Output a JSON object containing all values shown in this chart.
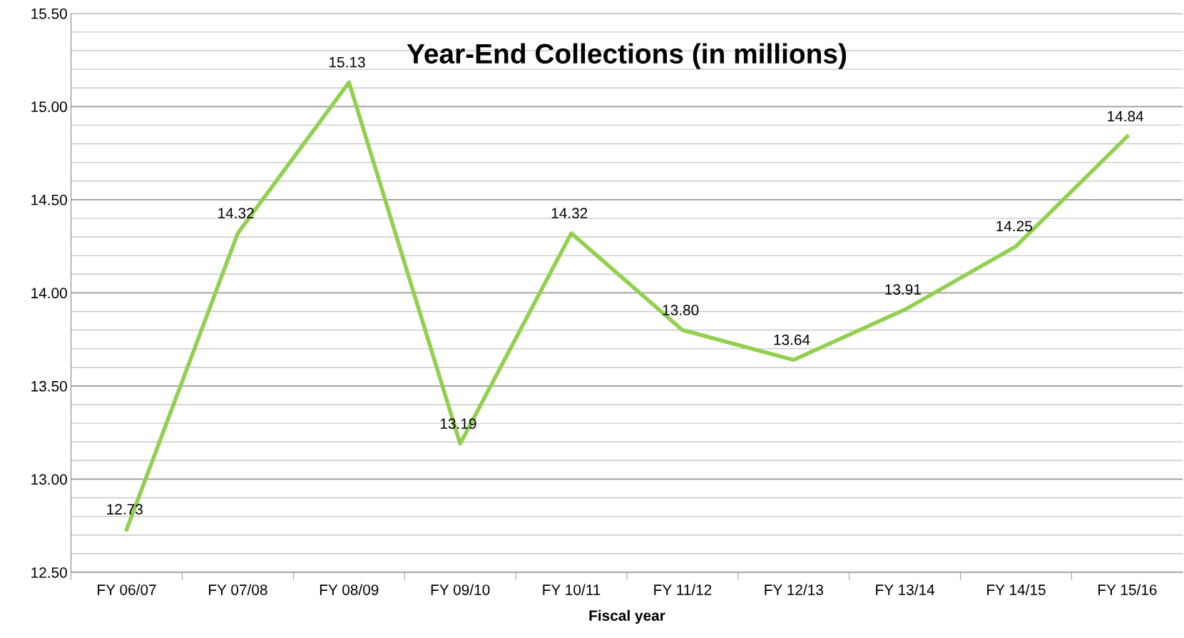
{
  "chart_data": {
    "type": "line",
    "title": "Year-End Collections (in millions)",
    "xlabel": "Fiscal year",
    "categories": [
      "FY 06/07",
      "FY 07/08",
      "FY 08/09",
      "FY 09/10",
      "FY 10/11",
      "FY 11/12",
      "FY 12/13",
      "FY 13/14",
      "FY 14/15",
      "FY 15/16"
    ],
    "series": [
      {
        "color": "#92d050",
        "values": [
          12.73,
          14.32,
          15.13,
          13.19,
          14.32,
          13.8,
          13.64,
          13.91,
          14.25,
          14.84
        ],
        "value_labels": [
          "12.73",
          "14.32",
          "15.13",
          "13.19",
          "14.32",
          "13.80",
          "13.64",
          "13.91",
          "14.25",
          "14.84"
        ]
      }
    ],
    "ylim": [
      12.5,
      15.5
    ],
    "yticks": [
      {
        "value": 12.5,
        "label": "12.50"
      },
      {
        "value": 12.6,
        "label": null
      },
      {
        "value": 12.7,
        "label": null
      },
      {
        "value": 12.8,
        "label": null
      },
      {
        "value": 12.9,
        "label": null
      },
      {
        "value": 13.0,
        "label": "13.00"
      },
      {
        "value": 13.1,
        "label": null
      },
      {
        "value": 13.2,
        "label": null
      },
      {
        "value": 13.3,
        "label": null
      },
      {
        "value": 13.4,
        "label": null
      },
      {
        "value": 13.5,
        "label": "13.50"
      },
      {
        "value": 13.6,
        "label": null
      },
      {
        "value": 13.7,
        "label": null
      },
      {
        "value": 13.8,
        "label": null
      },
      {
        "value": 13.9,
        "label": null
      },
      {
        "value": 14.0,
        "label": "14.00"
      },
      {
        "value": 14.1,
        "label": null
      },
      {
        "value": 14.2,
        "label": null
      },
      {
        "value": 14.3,
        "label": null
      },
      {
        "value": 14.4,
        "label": null
      },
      {
        "value": 14.5,
        "label": "14.50"
      },
      {
        "value": 14.6,
        "label": null
      },
      {
        "value": 14.7,
        "label": null
      },
      {
        "value": 14.8,
        "label": null
      },
      {
        "value": 14.9,
        "label": null
      },
      {
        "value": 15.0,
        "label": "15.00"
      },
      {
        "value": 15.1,
        "label": null
      },
      {
        "value": 15.2,
        "label": null
      },
      {
        "value": 15.3,
        "label": null
      },
      {
        "value": 15.4,
        "label": null
      },
      {
        "value": 15.5,
        "label": "15.50"
      }
    ],
    "grid": "y",
    "marker": "none",
    "line_style": "solid"
  }
}
